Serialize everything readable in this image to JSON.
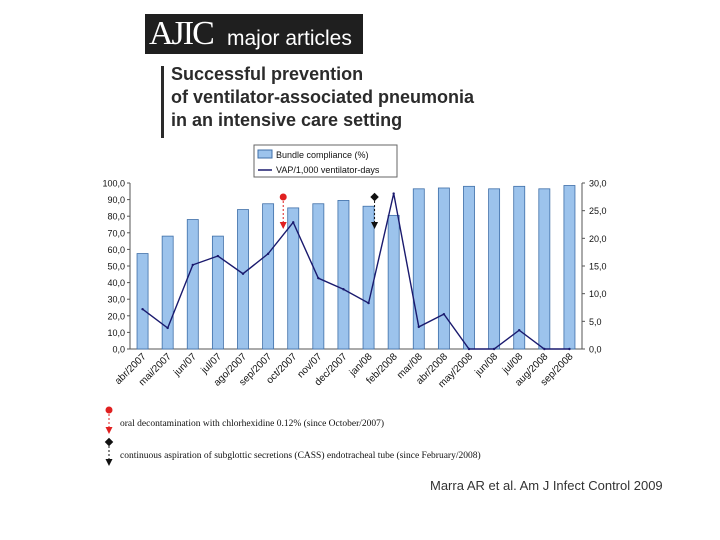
{
  "logo": {
    "left": "AJIC",
    "right": "major articles"
  },
  "title": {
    "line1": "Successful prevention",
    "line2": "of ventilator-associated pneumonia",
    "line3": "in an intensive care setting"
  },
  "colors": {
    "bar_fill": "#9cc3ec",
    "bar_stroke": "#3f6fa8",
    "line": "#1a1a6e",
    "red_marker": "#e02020",
    "black_marker": "#111111"
  },
  "chart_data": {
    "type": "bar+line",
    "categories": [
      "abr/2007",
      "mai/2007",
      "jun/07",
      "jul/07",
      "ago/2007",
      "sep/2007",
      "oct/2007",
      "nov/07",
      "dec/2007",
      "jan/08",
      "feb/2008",
      "mar/08",
      "abr/2008",
      "may/2008",
      "jun/08",
      "jul/08",
      "aug/2008",
      "sep/2008"
    ],
    "series": [
      {
        "name": "Bundle compliance (%)",
        "type": "bar",
        "axis": "left",
        "values": [
          57.5,
          68,
          78,
          68,
          84,
          87.5,
          85,
          87.5,
          89.5,
          86,
          80.5,
          96.5,
          97,
          98,
          96.5,
          98,
          96.5,
          98.5
        ]
      },
      {
        "name": "VAP/1,000 ventilator-days",
        "type": "line",
        "axis": "right",
        "values": [
          7.2,
          3.8,
          15.2,
          16.8,
          13.6,
          17.2,
          22.9,
          12.8,
          10.8,
          8.3,
          28.1,
          4.0,
          6.3,
          0,
          0,
          3.4,
          0,
          0
        ]
      }
    ],
    "yleft": {
      "ylim": [
        0,
        100
      ],
      "ticks": [
        "100,0",
        "90,0",
        "80,0",
        "70,0",
        "60,0",
        "50,0",
        "40,0",
        "30,0",
        "20,0",
        "10,0",
        "0,0"
      ]
    },
    "yright": {
      "ylim": [
        0,
        30
      ],
      "ticks": [
        "30,0",
        "25,0",
        "20,0",
        "15,0",
        "10,0",
        "5,0",
        "0,0"
      ]
    },
    "legend_position": "top-center",
    "markers": [
      {
        "category_index": 6,
        "kind": "red",
        "text": "oral decontamination with chlorhexidine 0.12% (since October/2007)"
      },
      {
        "category_index": 9,
        "kind": "black",
        "text": "continuous aspiration of subglottic secretions (CASS) endotracheal tube (since February/2008)"
      }
    ]
  },
  "citation": "Marra AR et al. Am J Infect Control 2009"
}
